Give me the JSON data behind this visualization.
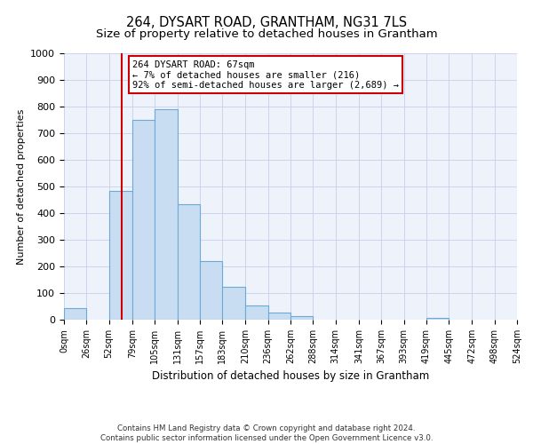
{
  "title": "264, DYSART ROAD, GRANTHAM, NG31 7LS",
  "subtitle": "Size of property relative to detached houses in Grantham",
  "xlabel": "Distribution of detached houses by size in Grantham",
  "ylabel": "Number of detached properties",
  "bin_edges": [
    0,
    26,
    52,
    79,
    105,
    131,
    157,
    183,
    210,
    236,
    262,
    288,
    314,
    341,
    367,
    393,
    419,
    445,
    472,
    498,
    524
  ],
  "bin_heights": [
    45,
    0,
    485,
    750,
    790,
    435,
    220,
    125,
    52,
    28,
    15,
    0,
    0,
    0,
    0,
    0,
    8,
    0,
    0,
    0
  ],
  "bar_color": "#c9ddf2",
  "bar_edge_color": "#6aaad4",
  "vline_x": 67,
  "vline_color": "#cc0000",
  "annotation_text": "264 DYSART ROAD: 67sqm\n← 7% of detached houses are smaller (216)\n92% of semi-detached houses are larger (2,689) →",
  "annotation_box_color": "#ffffff",
  "annotation_box_edge_color": "#cc0000",
  "ylim": [
    0,
    1000
  ],
  "yticks": [
    0,
    100,
    200,
    300,
    400,
    500,
    600,
    700,
    800,
    900,
    1000
  ],
  "tick_labels": [
    "0sqm",
    "26sqm",
    "52sqm",
    "79sqm",
    "105sqm",
    "131sqm",
    "157sqm",
    "183sqm",
    "210sqm",
    "236sqm",
    "262sqm",
    "288sqm",
    "314sqm",
    "341sqm",
    "367sqm",
    "393sqm",
    "419sqm",
    "445sqm",
    "472sqm",
    "498sqm",
    "524sqm"
  ],
  "footer_text": "Contains HM Land Registry data © Crown copyright and database right 2024.\nContains public sector information licensed under the Open Government Licence v3.0.",
  "bg_color": "#edf2fb",
  "grid_color": "#c8cfe8",
  "title_fontsize": 10.5,
  "axis_label_fontsize": 8,
  "tick_fontsize": 7,
  "annotation_fontsize": 7.5,
  "footer_fontsize": 6.2
}
